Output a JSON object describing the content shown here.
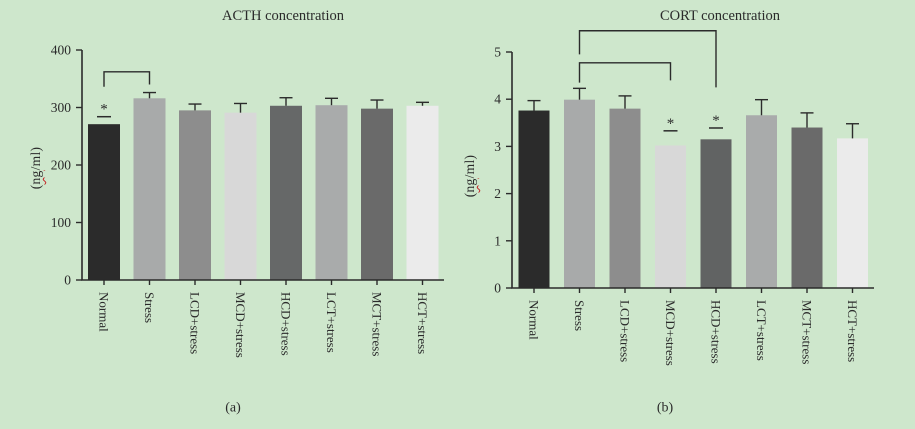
{
  "figure": {
    "background": "#cee7cc",
    "text_color": "#2b2b2b",
    "axis_color": "#2b2b2b",
    "squiggle_color": "#c42222"
  },
  "chart_data": [
    {
      "type": "bar",
      "panel_label": "(a)",
      "title": "ACTH concentration",
      "ylabel": "(ng/ml)",
      "ylabel_parts": {
        "pre": "(",
        "wavy": "ng",
        "post": "/ml)"
      },
      "xlabel": "",
      "ylim": [
        0,
        400
      ],
      "yticks": [
        0,
        100,
        200,
        300,
        400
      ],
      "grid": false,
      "legend": null,
      "categories": [
        "Normal",
        "Stress",
        "LCD+stress",
        "MCD+stress",
        "HCD+stress",
        "LCT+stress",
        "MCT+stress",
        "HCT+stress"
      ],
      "values": [
        271,
        316,
        295,
        291,
        303,
        304,
        298,
        303
      ],
      "errors_upper": [
        null,
        10,
        11,
        16,
        14,
        12,
        15,
        6
      ],
      "bar_colors": [
        "#2b2b2b",
        "#a8aaaa",
        "#8d8d8d",
        "#d8d8d8",
        "#666868",
        "#a9abab",
        "#6a6a6a",
        "#ebebeb"
      ],
      "significance": [
        {
          "category_index": 0,
          "marker": "*",
          "line_value": 284
        }
      ],
      "brackets": [
        {
          "from": 0,
          "to": 1,
          "top_value": 362,
          "left_drop_to": 336,
          "right_drop_to": 340
        }
      ]
    },
    {
      "type": "bar",
      "panel_label": "(b)",
      "title": "CORT concentration",
      "ylabel": "(ng/ml)",
      "ylabel_parts": {
        "pre": "(",
        "wavy": "ng",
        "post": "/ml)"
      },
      "xlabel": "",
      "ylim": [
        0,
        5
      ],
      "yticks": [
        0,
        1,
        2,
        3,
        4,
        5
      ],
      "grid": false,
      "legend": null,
      "categories": [
        "Normal",
        "Stress",
        "LCD+stress",
        "MCD+stress",
        "HCD+stress",
        "LCT+stress",
        "MCT+stress",
        "HCT+stress"
      ],
      "values": [
        3.76,
        3.99,
        3.8,
        3.02,
        3.15,
        3.66,
        3.4,
        3.17
      ],
      "errors_upper": [
        0.21,
        0.24,
        0.27,
        null,
        null,
        0.33,
        0.31,
        0.31
      ],
      "bar_colors": [
        "#2b2b2b",
        "#a8aaaa",
        "#8d8d8d",
        "#d8d8d8",
        "#616363",
        "#a9abab",
        "#6a6a6a",
        "#ebebeb"
      ],
      "significance": [
        {
          "category_index": 3,
          "marker": "*",
          "line_value": 3.33
        },
        {
          "category_index": 4,
          "marker": "*",
          "line_value": 3.39
        }
      ],
      "brackets": [
        {
          "from": 1,
          "to": 4,
          "top_value": 5.45,
          "left_drop_to": 4.95,
          "right_drop_to": 4.25
        },
        {
          "from": 1,
          "to": 3,
          "top_value": 4.77,
          "left_drop_to": 4.35,
          "right_drop_to": 4.4
        }
      ]
    }
  ]
}
